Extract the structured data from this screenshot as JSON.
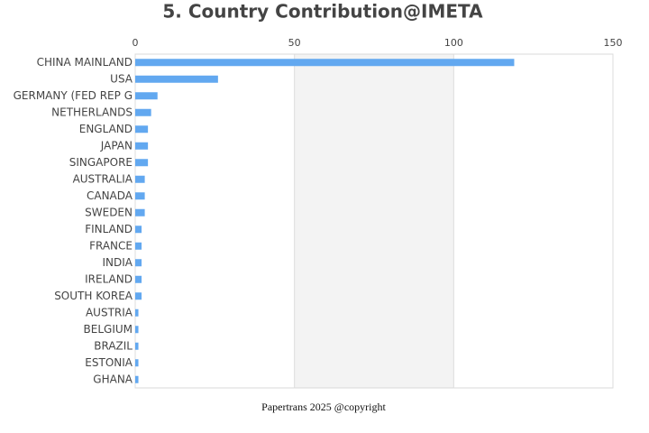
{
  "chart_data": {
    "type": "hbar",
    "title": "5. Country Contribution@IMETA",
    "categories": [
      "CHINA MAINLAND",
      "USA",
      "GERMANY (FED REP G",
      "NETHERLANDS",
      "ENGLAND",
      "JAPAN",
      "SINGAPORE",
      "AUSTRALIA",
      "CANADA",
      "SWEDEN",
      "FINLAND",
      "FRANCE",
      "INDIA",
      "IRELAND",
      "SOUTH KOREA",
      "AUSTRIA",
      "BELGIUM",
      "BRAZIL",
      "ESTONIA",
      "GHANA"
    ],
    "values": [
      119,
      26,
      7,
      5,
      4,
      4,
      4,
      3,
      3,
      3,
      2,
      2,
      2,
      2,
      2,
      1,
      1,
      1,
      1,
      1
    ],
    "color": "#62a8f0",
    "xlim": [
      0,
      150
    ],
    "xticks": [
      0,
      50,
      100,
      150
    ],
    "grid": true,
    "footer": "Papertrans 2025 @copyright"
  }
}
